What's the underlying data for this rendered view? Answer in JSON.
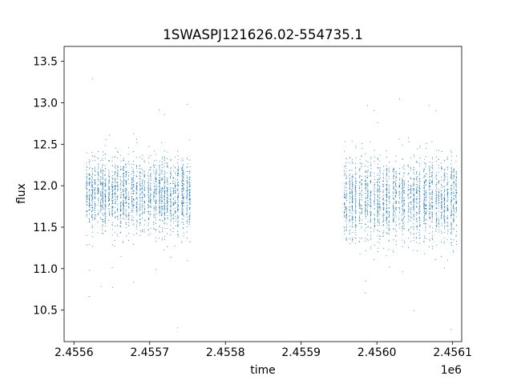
{
  "chart_data": {
    "type": "scatter",
    "title": "1SWASPJ121626.02-554735.1",
    "xlabel": "time",
    "ylabel": "flux",
    "x_offset_label": "1e6",
    "x_tick_labels": [
      "2.4556",
      "2.4557",
      "2.4558",
      "2.4559",
      "2.4560",
      "2.4561"
    ],
    "x_ticks": [
      2455600,
      2455700,
      2455800,
      2455900,
      2456000,
      2456100
    ],
    "y_ticks": [
      10.5,
      11.0,
      11.5,
      12.0,
      12.5,
      13.0,
      13.5
    ],
    "y_tick_labels": [
      "10.5",
      "11.0",
      "11.5",
      "12.0",
      "12.5",
      "13.0",
      "13.5"
    ],
    "xlim": [
      2455587,
      2456112
    ],
    "ylim": [
      10.12,
      13.68
    ],
    "grid": false,
    "point_color": "#1f77b4",
    "segments": [
      {
        "x_range": [
          2455615,
          2455755
        ],
        "center": 11.9,
        "spread": 0.38
      },
      {
        "x_range": [
          2455955,
          2456108
        ],
        "center": 11.85,
        "spread": 0.42
      }
    ],
    "approx_extremes": {
      "min": 10.27,
      "max": 13.55
    }
  }
}
